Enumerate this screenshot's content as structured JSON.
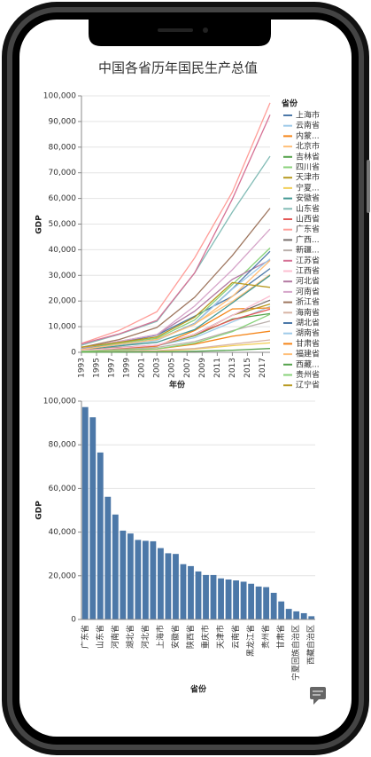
{
  "chart_data": [
    {
      "type": "line",
      "title": "中国各省历年国民生产总值",
      "x_label": "年份",
      "y_label": "GDP",
      "legend_title": "省份",
      "legend": "right",
      "grid": true,
      "x": [
        1993,
        1998,
        2003,
        2008,
        2013,
        2018
      ],
      "xlim": [
        1993,
        2018
      ],
      "xticks": [
        1993,
        1995,
        1997,
        1999,
        2001,
        2003,
        2005,
        2007,
        2009,
        2011,
        2013,
        2015,
        2017
      ],
      "ylim": [
        0,
        100000
      ],
      "yticks": [
        0,
        {
          "value": 10000,
          "label": "10,000"
        },
        {
          "value": 20000,
          "label": "20,000"
        },
        {
          "value": 30000,
          "label": "30,000"
        },
        {
          "value": 40000,
          "label": "40,000"
        },
        {
          "value": 50000,
          "label": "50,000"
        },
        {
          "value": 60000,
          "label": "60,000"
        },
        {
          "value": 70000,
          "label": "70,000"
        },
        {
          "value": 80000,
          "label": "80,000"
        },
        {
          "value": 90000,
          "label": "90,000"
        },
        {
          "value": 100000,
          "label": "100,000"
        }
      ],
      "series": [
        {
          "name": "上海市",
          "color": "#4c78a8",
          "values": [
            1520,
            3800,
            6700,
            14070,
            21820,
            32680
          ]
        },
        {
          "name": "云南省",
          "color": "#9ecae9",
          "values": [
            780,
            1790,
            2560,
            5700,
            11830,
            17881
          ]
        },
        {
          "name": "内蒙...",
          "color": "#f58518",
          "values": [
            530,
            1260,
            2390,
            8500,
            16920,
            17289
          ]
        },
        {
          "name": "北京市",
          "color": "#ffbf79",
          "values": [
            890,
            2380,
            5010,
            11120,
            19800,
            30320
          ]
        },
        {
          "name": "吉林省",
          "color": "#54a24b",
          "values": [
            720,
            1560,
            2660,
            6420,
            12980,
            15075
          ]
        },
        {
          "name": "四川省",
          "color": "#88d27a",
          "values": [
            1490,
            3580,
            5460,
            12600,
            26390,
            40678
          ]
        },
        {
          "name": "天津市",
          "color": "#b79a20",
          "values": [
            540,
            1370,
            2580,
            6720,
            14440,
            18810
          ]
        },
        {
          "name": "宁夏...",
          "color": "#f2cf5b",
          "values": [
            100,
            250,
            450,
            1200,
            2580,
            3705
          ]
        },
        {
          "name": "安徽省",
          "color": "#439894",
          "values": [
            1040,
            2540,
            3920,
            8850,
            19230,
            30007
          ]
        },
        {
          "name": "山东省",
          "color": "#83bcb6",
          "values": [
            2770,
            7020,
            12080,
            30930,
            54680,
            76470
          ]
        },
        {
          "name": "山西省",
          "color": "#e45756",
          "values": [
            600,
            1600,
            2590,
            7030,
            12660,
            16818
          ]
        },
        {
          "name": "广东省",
          "color": "#ff9d98",
          "values": [
            3470,
            8530,
            15840,
            36800,
            62470,
            97278
          ]
        },
        {
          "name": "广西...",
          "color": "#79706e",
          "values": [
            870,
            1900,
            2820,
            7020,
            14450,
            20353
          ]
        },
        {
          "name": "新疆...",
          "color": "#bab0ac",
          "values": [
            500,
            1120,
            1890,
            4180,
            8440,
            12199
          ]
        },
        {
          "name": "江苏省",
          "color": "#d67195",
          "values": [
            3290,
            7200,
            12440,
            30980,
            59750,
            92595
          ]
        },
        {
          "name": "江西省",
          "color": "#fcbfd2",
          "values": [
            720,
            1720,
            2830,
            6970,
            14410,
            21985
          ]
        },
        {
          "name": "河北省",
          "color": "#b279a2",
          "values": [
            1690,
            4260,
            6920,
            16010,
            28440,
            36010
          ]
        },
        {
          "name": "河南省",
          "color": "#d6a5c9",
          "values": [
            1660,
            4300,
            6870,
            18020,
            32190,
            48056
          ]
        },
        {
          "name": "浙江省",
          "color": "#9e765f",
          "values": [
            1930,
            4990,
            9700,
            21460,
            37760,
            56197
          ]
        },
        {
          "name": "海南省",
          "color": "#d8b5a5",
          "values": [
            260,
            440,
            690,
            1500,
            3180,
            4832
          ]
        },
        {
          "name": "湖北省",
          "color": "#4c78a8",
          "values": [
            1330,
            3110,
            4760,
            11330,
            24790,
            39367
          ]
        },
        {
          "name": "湖南省",
          "color": "#9ecae9",
          "values": [
            1240,
            2940,
            4640,
            11160,
            24620,
            36426
          ]
        },
        {
          "name": "甘肃省",
          "color": "#f58518",
          "values": [
            370,
            870,
            1300,
            3170,
            6270,
            8246
          ]
        },
        {
          "name": "福建省",
          "color": "#ffbf79",
          "values": [
            1110,
            3160,
            4980,
            10820,
            21760,
            35804
          ]
        },
        {
          "name": "西藏...",
          "color": "#54a24b",
          "values": [
            40,
            90,
            190,
            390,
            820,
            1477
          ]
        },
        {
          "name": "贵州省",
          "color": "#88d27a",
          "values": [
            420,
            840,
            1360,
            3560,
            8090,
            14806
          ]
        },
        {
          "name": "辽宁省",
          "color": "#b79a20",
          "values": [
            2010,
            3880,
            6000,
            13670,
            27210,
            25315
          ]
        }
      ]
    },
    {
      "type": "bar",
      "x_label": "省份",
      "y_label": "GDP",
      "color": "#4c78a8",
      "grid": true,
      "categories": [
        "广东省",
        null,
        "山东省",
        null,
        "河南省",
        null,
        "湖北省",
        null,
        "河北省",
        null,
        "上海市",
        null,
        "安徽省",
        null,
        "陕西省",
        null,
        "重庆市",
        null,
        "天津市",
        null,
        "云南省",
        null,
        "黑龙江省",
        null,
        "贵州省",
        null,
        "甘肃省",
        null,
        "宁夏回族自治区",
        null,
        "西藏自治区"
      ],
      "values": [
        97278,
        92595,
        76470,
        56197,
        48056,
        40678,
        39367,
        36426,
        36010,
        35804,
        32680,
        30320,
        30007,
        25315,
        24438,
        21985,
        20363,
        20353,
        18810,
        18300,
        17881,
        17289,
        16362,
        15075,
        14806,
        12199,
        8246,
        4832,
        3705,
        2865,
        1477
      ],
      "ylim": [
        0,
        100000
      ],
      "yticks": [
        0,
        {
          "value": 20000,
          "label": "20,000"
        },
        {
          "value": 40000,
          "label": "40,000"
        },
        {
          "value": 60000,
          "label": "60,000"
        },
        {
          "value": 80000,
          "label": "80,000"
        },
        {
          "value": 100000,
          "label": "100,000"
        }
      ]
    }
  ]
}
